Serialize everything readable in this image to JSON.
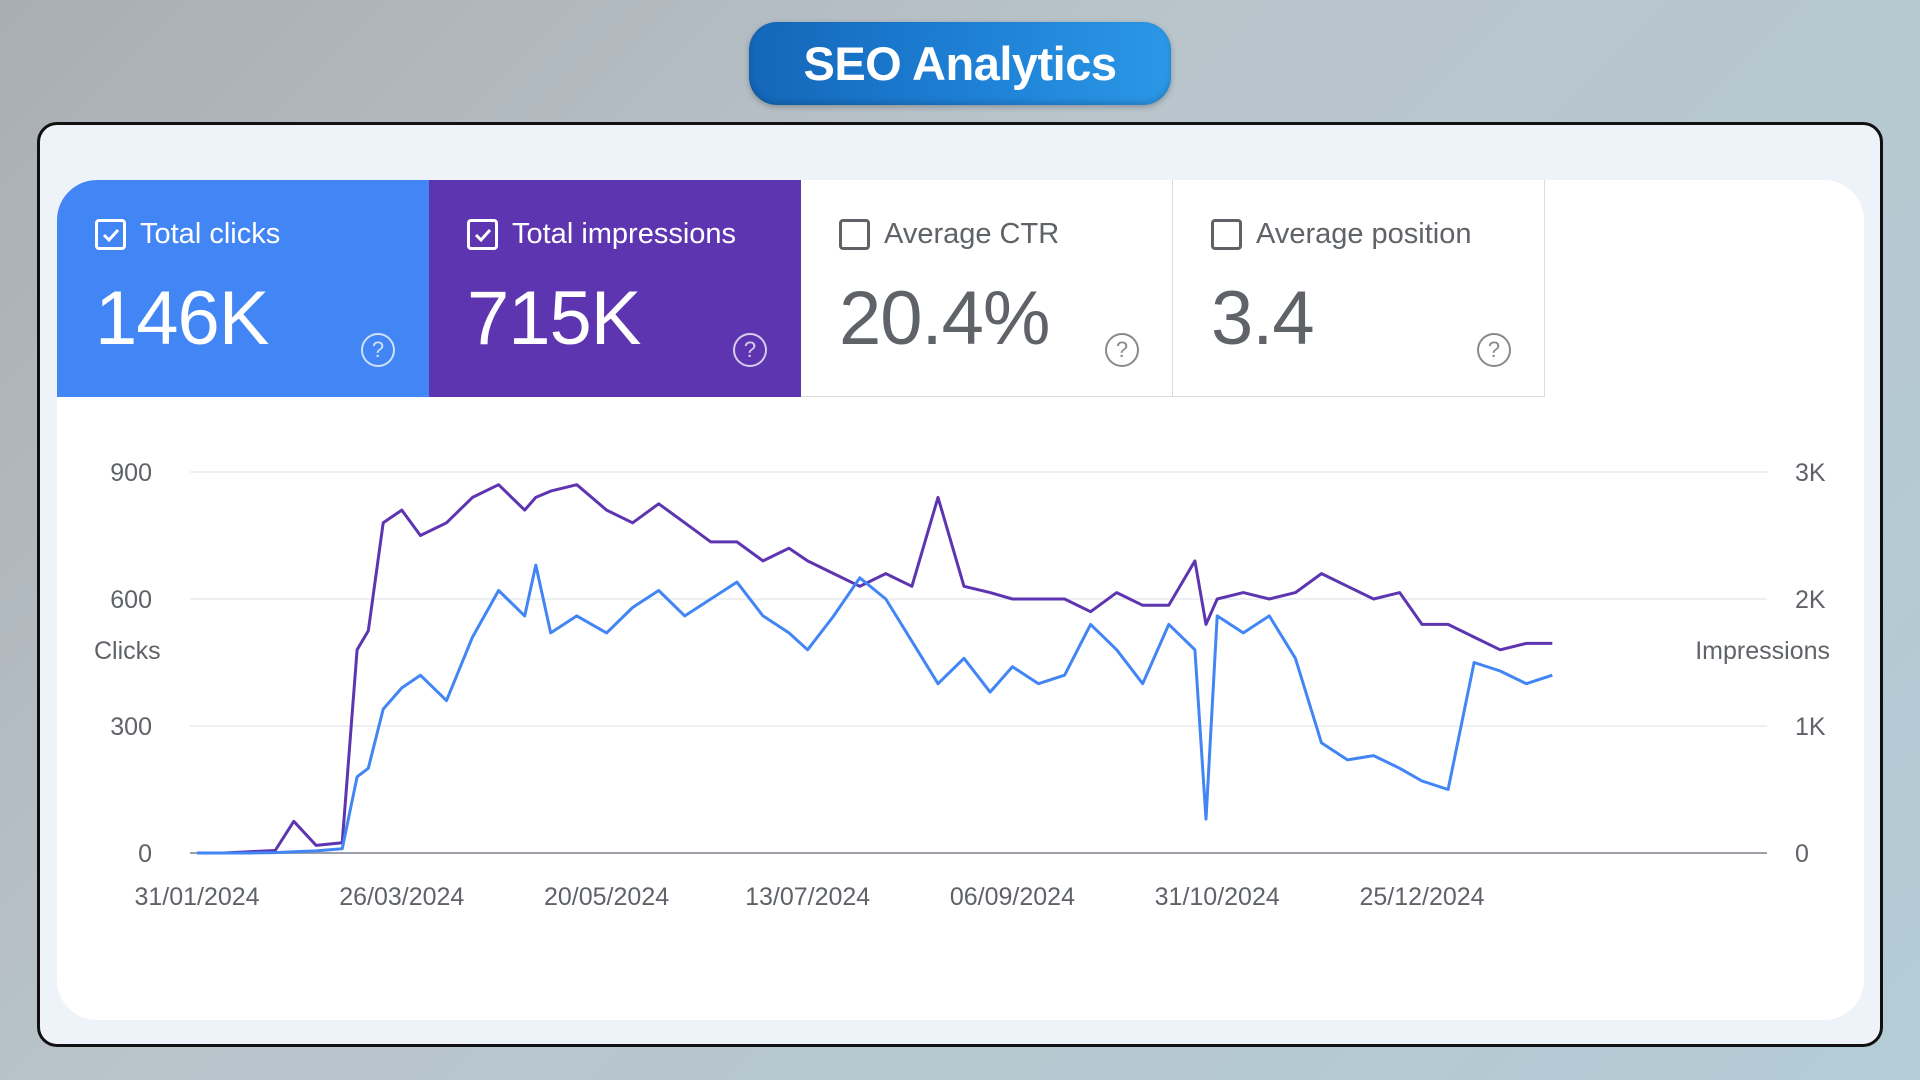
{
  "page_title": "SEO Analytics",
  "metrics": [
    {
      "label": "Total clicks",
      "value": "146K",
      "checked": true,
      "color": "#4285f4"
    },
    {
      "label": "Total impressions",
      "value": "715K",
      "checked": true,
      "color": "#5e35b1"
    },
    {
      "label": "Average CTR",
      "value": "20.4%",
      "checked": false
    },
    {
      "label": "Average position",
      "value": "3.4",
      "checked": false
    }
  ],
  "icons": {
    "checkbox_checked": "checkbox-checked-icon",
    "checkbox_empty": "checkbox-empty-icon",
    "help": "help-circle-icon"
  },
  "chart_data": {
    "type": "line",
    "ylabel": "Clicks",
    "y2label": "Impressions",
    "ylim": [
      0,
      900
    ],
    "y2lim": [
      0,
      3000
    ],
    "yticks": [
      "900",
      "600",
      "300",
      "0"
    ],
    "y2ticks": [
      "3K",
      "2K",
      "1K",
      "0"
    ],
    "xticks": [
      "31/01/2024",
      "26/03/2024",
      "20/05/2024",
      "13/07/2024",
      "06/09/2024",
      "31/10/2024",
      "25/12/2024"
    ],
    "x": [
      "2024-01-31",
      "2024-02-07",
      "2024-02-14",
      "2024-02-21",
      "2024-02-26",
      "2024-03-03",
      "2024-03-10",
      "2024-03-14",
      "2024-03-17",
      "2024-03-21",
      "2024-03-26",
      "2024-03-31",
      "2024-04-07",
      "2024-04-14",
      "2024-04-21",
      "2024-04-28",
      "2024-05-01",
      "2024-05-05",
      "2024-05-12",
      "2024-05-20",
      "2024-05-27",
      "2024-06-03",
      "2024-06-10",
      "2024-06-17",
      "2024-06-24",
      "2024-07-01",
      "2024-07-08",
      "2024-07-13",
      "2024-07-20",
      "2024-07-27",
      "2024-08-03",
      "2024-08-10",
      "2024-08-17",
      "2024-08-24",
      "2024-08-31",
      "2024-09-06",
      "2024-09-13",
      "2024-09-20",
      "2024-09-27",
      "2024-10-04",
      "2024-10-11",
      "2024-10-18",
      "2024-10-25",
      "2024-10-28",
      "2024-10-31",
      "2024-11-07",
      "2024-11-14",
      "2024-11-21",
      "2024-11-28",
      "2024-12-05",
      "2024-12-12",
      "2024-12-19",
      "2024-12-25",
      "2025-01-01",
      "2025-01-08",
      "2025-01-15",
      "2025-01-22",
      "2025-01-29"
    ],
    "series": [
      {
        "name": "Clicks",
        "axis": "left",
        "color": "#4285f4",
        "values": [
          0,
          0,
          0,
          1,
          3,
          5,
          10,
          180,
          200,
          340,
          390,
          420,
          360,
          510,
          620,
          560,
          680,
          520,
          560,
          520,
          580,
          620,
          560,
          600,
          640,
          560,
          520,
          480,
          560,
          650,
          600,
          500,
          400,
          460,
          380,
          440,
          400,
          420,
          540,
          480,
          400,
          540,
          480,
          80,
          560,
          520,
          560,
          460,
          260,
          220,
          230,
          200,
          170,
          150,
          450,
          430,
          400,
          420
        ]
      },
      {
        "name": "Impressions",
        "axis": "right",
        "color": "#5e35b1",
        "values": [
          0,
          0,
          10,
          20,
          250,
          60,
          80,
          1600,
          1750,
          2600,
          2700,
          2500,
          2600,
          2800,
          2900,
          2700,
          2800,
          2850,
          2900,
          2700,
          2600,
          2750,
          2600,
          2450,
          2450,
          2300,
          2400,
          2300,
          2200,
          2100,
          2200,
          2100,
          2800,
          2100,
          2050,
          2000,
          2000,
          2000,
          1900,
          2050,
          1950,
          1950,
          2300,
          1800,
          2000,
          2050,
          2000,
          2050,
          2200,
          2100,
          2000,
          2050,
          1800,
          1800,
          1700,
          1600,
          1650,
          1650
        ]
      }
    ]
  }
}
